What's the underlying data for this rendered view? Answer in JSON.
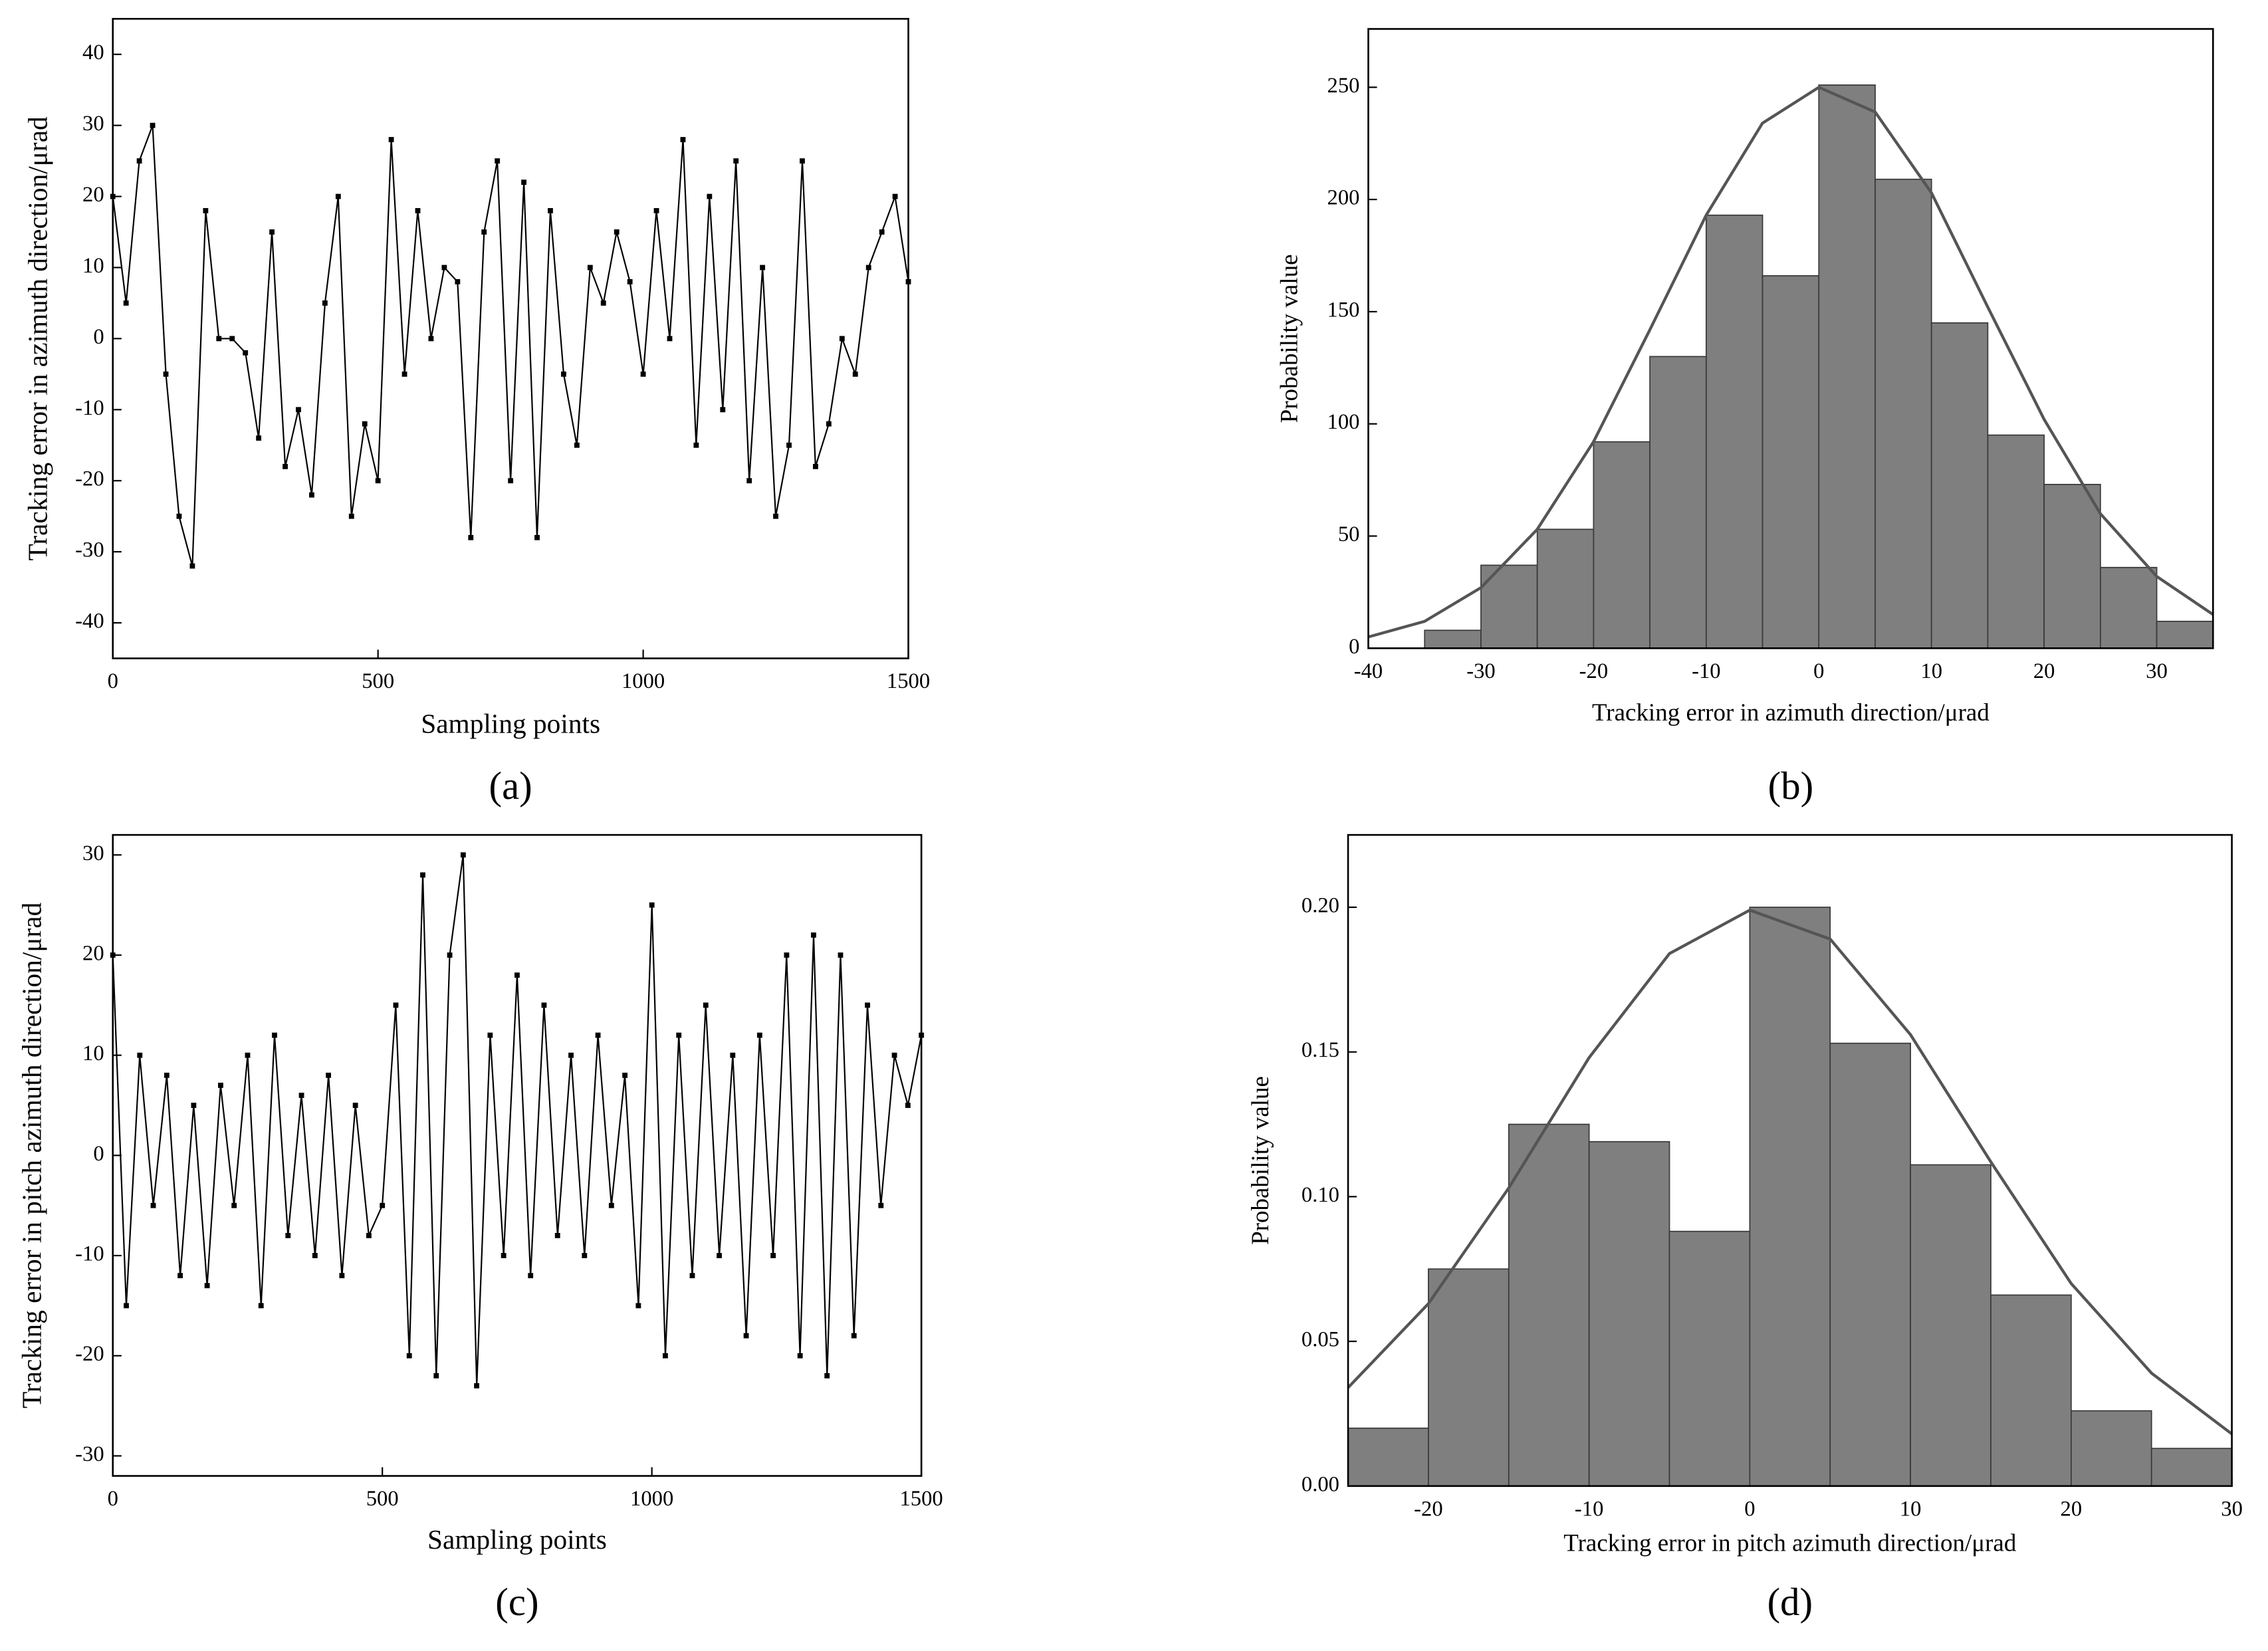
{
  "chart_data": [
    {
      "type": "line",
      "panel_label": "(a)",
      "xlabel": "Sampling points",
      "ylabel": "Tracking error in azimuth direction/μrad",
      "color": "#000000",
      "markers": true,
      "x": [
        0,
        25,
        50,
        75,
        100,
        125,
        150,
        175,
        200,
        225,
        250,
        275,
        300,
        325,
        350,
        375,
        400,
        425,
        450,
        475,
        500,
        525,
        550,
        575,
        600,
        625,
        650,
        675,
        700,
        725,
        750,
        775,
        800,
        825,
        850,
        875,
        900,
        925,
        950,
        975,
        1000,
        1025,
        1050,
        1075,
        1100,
        1125,
        1150,
        1175,
        1200,
        1225,
        1250,
        1275,
        1300,
        1325,
        1350,
        1375,
        1400,
        1425,
        1450,
        1475,
        1500
      ],
      "values": [
        20,
        5,
        25,
        30,
        -5,
        -25,
        -32,
        18,
        0,
        0,
        -2,
        -14,
        15,
        -18,
        -10,
        -22,
        5,
        20,
        -25,
        -12,
        -20,
        28,
        -5,
        18,
        0,
        10,
        8,
        -28,
        15,
        25,
        -20,
        22,
        -28,
        18,
        -5,
        -15,
        10,
        5,
        15,
        8,
        -5,
        18,
        0,
        28,
        -15,
        20,
        -10,
        25,
        -20,
        10,
        -25,
        -15,
        25,
        -18,
        -12,
        0,
        -5,
        10,
        15,
        20,
        8
      ],
      "xlim": [
        0,
        1500
      ],
      "xticks": [
        0,
        500,
        1000,
        1500
      ],
      "ylim": [
        -45,
        45
      ],
      "yticks": [
        -40,
        -30,
        -20,
        -10,
        0,
        10,
        20,
        30,
        40
      ]
    },
    {
      "type": "histogram",
      "panel_label": "(b)",
      "xlabel": "Tracking error in azimuth direction/μrad",
      "ylabel": "Probability value",
      "color": "#7f7f7f",
      "edge_color": "#3a3a3a",
      "fit_color": "#555555",
      "bins": [
        -35,
        -30,
        -25,
        -20,
        -15,
        -10,
        -5,
        0,
        5,
        10,
        15,
        20,
        25,
        30,
        35
      ],
      "counts": [
        8,
        37,
        53,
        92,
        130,
        193,
        166,
        251,
        209,
        145,
        95,
        73,
        36,
        12
      ],
      "fit": {
        "x": [
          -40,
          -35,
          -30,
          -25,
          -20,
          -15,
          -10,
          -5,
          0,
          5,
          10,
          15,
          20,
          25,
          30,
          35
        ],
        "values": [
          5,
          12,
          27,
          53,
          92,
          142,
          193,
          234,
          250,
          239,
          203,
          152,
          102,
          60,
          32,
          15
        ]
      },
      "xlim": [
        -40,
        35
      ],
      "xticks": [
        -40,
        -30,
        -20,
        -10,
        0,
        10,
        20,
        30
      ],
      "ylim": [
        0,
        276
      ],
      "yticks": [
        0,
        50,
        100,
        150,
        200,
        250
      ]
    },
    {
      "type": "line",
      "panel_label": "(c)",
      "xlabel": "Sampling points",
      "ylabel": "Tracking error in pitch azimuth direction/μrad",
      "color": "#000000",
      "markers": true,
      "x": [
        0,
        25,
        50,
        75,
        100,
        125,
        150,
        175,
        200,
        225,
        250,
        275,
        300,
        325,
        350,
        375,
        400,
        425,
        450,
        475,
        500,
        525,
        550,
        575,
        600,
        625,
        650,
        675,
        700,
        725,
        750,
        775,
        800,
        825,
        850,
        875,
        900,
        925,
        950,
        975,
        1000,
        1025,
        1050,
        1075,
        1100,
        1125,
        1150,
        1175,
        1200,
        1225,
        1250,
        1275,
        1300,
        1325,
        1350,
        1375,
        1400,
        1425,
        1450,
        1475,
        1500
      ],
      "values": [
        20,
        -15,
        10,
        -5,
        8,
        -12,
        5,
        -13,
        7,
        -5,
        10,
        -15,
        12,
        -8,
        6,
        -10,
        8,
        -12,
        5,
        -8,
        -5,
        15,
        -20,
        28,
        -22,
        20,
        30,
        -23,
        12,
        -10,
        18,
        -12,
        15,
        -8,
        10,
        -10,
        12,
        -5,
        8,
        -15,
        25,
        -20,
        12,
        -12,
        15,
        -10,
        10,
        -18,
        12,
        -10,
        20,
        -20,
        22,
        -22,
        20,
        -18,
        15,
        -5,
        10,
        5,
        12
      ],
      "xlim": [
        0,
        1500
      ],
      "xticks": [
        0,
        500,
        1000,
        1500
      ],
      "ylim": [
        -32,
        32
      ],
      "yticks": [
        -30,
        -20,
        -10,
        0,
        10,
        20,
        30
      ]
    },
    {
      "type": "histogram",
      "panel_label": "(d)",
      "xlabel": "Tracking error in pitch azimuth direction/μrad",
      "ylabel": "Probability value",
      "color": "#7f7f7f",
      "edge_color": "#3a3a3a",
      "fit_color": "#555555",
      "bins": [
        -25,
        -20,
        -15,
        -10,
        -5,
        0,
        5,
        10,
        15,
        20,
        25,
        30
      ],
      "counts": [
        0.02,
        0.075,
        0.125,
        0.119,
        0.088,
        0.2,
        0.153,
        0.111,
        0.066,
        0.026,
        0.013
      ],
      "fit": {
        "x": [
          -25,
          -20,
          -15,
          -10,
          -5,
          0,
          5,
          10,
          15,
          20,
          25,
          30
        ],
        "values": [
          0.034,
          0.063,
          0.103,
          0.148,
          0.184,
          0.199,
          0.189,
          0.156,
          0.112,
          0.07,
          0.039,
          0.018
        ]
      },
      "xlim": [
        -25,
        30
      ],
      "xticks": [
        -20,
        -10,
        0,
        10,
        20,
        30
      ],
      "ylim": [
        0,
        0.225
      ],
      "yticks": [
        {
          "value": 0,
          "label": "0.00"
        },
        {
          "value": 0.05,
          "label": "0.05"
        },
        {
          "value": 0.1,
          "label": "0.10"
        },
        {
          "value": 0.15,
          "label": "0.15"
        },
        {
          "value": 0.2,
          "label": "0.20"
        }
      ]
    }
  ]
}
